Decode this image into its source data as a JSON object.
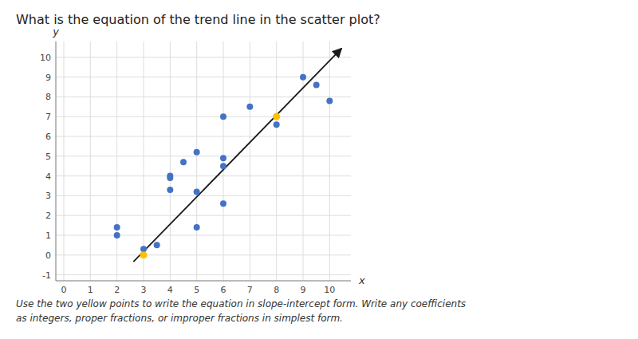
{
  "chart_data": {
    "type": "scatter",
    "title": "What is the equation of the trend line in the scatter plot?",
    "subtitle": [
      "Use the two yellow points to write the equation in slope-intercept form. Write any coefficients",
      "as integers, proper fractions, or improper fractions in simplest form."
    ],
    "x_label": "x",
    "y_label": "y",
    "xlim": [
      -0.3,
      10.8
    ],
    "ylim": [
      -1.3,
      10.8
    ],
    "xticks": [
      0,
      1,
      2,
      3,
      4,
      5,
      6,
      7,
      8,
      9,
      10
    ],
    "yticks": [
      -1,
      0,
      1,
      2,
      3,
      4,
      5,
      6,
      7,
      8,
      9,
      10
    ],
    "grid": true,
    "series": [
      {
        "type": "scatter",
        "marker": "circle",
        "color": "#4472C4",
        "x": [
          2,
          2,
          3,
          3.5,
          4,
          4,
          4,
          4.5,
          5,
          5,
          5,
          6,
          6,
          6,
          6,
          7,
          8.0,
          9,
          9.5,
          10
        ],
        "values": [
          1.4,
          1.0,
          0.3,
          0.5,
          4.0,
          3.9,
          3.3,
          4.7,
          1.4,
          3.2,
          5.2,
          7.0,
          4.9,
          4.5,
          2.6,
          7.5,
          6.6,
          9.0,
          8.6,
          7.8
        ]
      },
      {
        "type": "scatter",
        "marker": "circle",
        "color": "#FFC000",
        "x": [
          3,
          8
        ],
        "values": [
          0,
          7
        ]
      },
      {
        "type": "line",
        "line_style": "solid",
        "color": "#1a1a1a",
        "x": [
          2.62,
          10.45
        ],
        "values": [
          -0.34,
          10.45
        ]
      }
    ]
  }
}
